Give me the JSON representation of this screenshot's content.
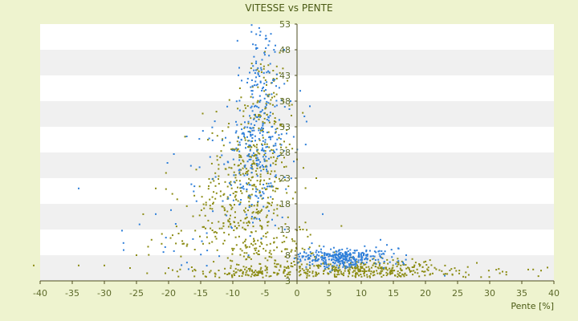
{
  "chart_data": {
    "type": "scatter",
    "title": "VITESSE vs PENTE",
    "xlabel": "Pente [%]",
    "ylabel": "",
    "xlim": [
      -40,
      40
    ],
    "ylim": [
      3,
      53
    ],
    "x_ticks": [
      -40,
      -35,
      -30,
      -25,
      -20,
      -15,
      -10,
      -5,
      0,
      5,
      10,
      15,
      20,
      25,
      30,
      35,
      40
    ],
    "y_ticks": [
      3,
      8,
      13,
      18,
      23,
      28,
      33,
      38,
      43,
      48,
      53
    ],
    "grid": "horizontal alternating bands",
    "colors": {
      "background": "#eef3cf",
      "plot_band_light": "#ffffff",
      "plot_band_dark": "#f0f0f0",
      "axis": "#4d4d1f",
      "text": "#5d6a2a",
      "series_blue": "#2f7fd9",
      "series_olive": "#8c8c14"
    },
    "series": [
      {
        "color": "#2f7fd9",
        "clusters": [
          {
            "cx": -6,
            "cy": 30,
            "sx": 2.2,
            "sy": 7,
            "n": 250
          },
          {
            "cx": -5.5,
            "cy": 45,
            "sx": 1.2,
            "sy": 4,
            "n": 60
          },
          {
            "cx": 7,
            "cy": 7.5,
            "sx": 3.5,
            "sy": 0.9,
            "n": 320
          },
          {
            "cx": -10,
            "cy": 25,
            "sx": 4,
            "sy": 5,
            "n": 60
          },
          {
            "cx": -18,
            "cy": 10,
            "sx": 5,
            "sy": 4,
            "n": 20
          }
        ],
        "points": [
          [
            -34,
            21
          ],
          [
            -27,
            9
          ],
          [
            -22,
            16
          ],
          [
            2,
            37
          ],
          [
            0.5,
            40
          ],
          [
            13,
            11
          ],
          [
            14,
            10
          ],
          [
            17,
            8
          ],
          [
            23,
            4
          ],
          [
            -1,
            38
          ],
          [
            -2,
            48
          ],
          [
            4,
            16
          ]
        ]
      },
      {
        "color": "#8c8c14",
        "clusters": [
          {
            "cx": -7,
            "cy": 23,
            "sx": 3,
            "sy": 7,
            "n": 320
          },
          {
            "cx": -5,
            "cy": 38,
            "sx": 1.8,
            "sy": 6,
            "n": 80
          },
          {
            "cx": -12,
            "cy": 14,
            "sx": 5,
            "sy": 6,
            "n": 160
          },
          {
            "cx": 10,
            "cy": 5.2,
            "sx": 6,
            "sy": 1,
            "n": 300
          },
          {
            "cx": -3,
            "cy": 8,
            "sx": 4,
            "sy": 3,
            "n": 120
          },
          {
            "cx": -8,
            "cy": 4.5,
            "sx": 4,
            "sy": 0.8,
            "n": 80
          },
          {
            "cx": 25,
            "cy": 4.5,
            "sx": 7,
            "sy": 0.7,
            "n": 40
          }
        ],
        "points": [
          [
            -41,
            6
          ],
          [
            -34,
            6
          ],
          [
            -30,
            6
          ],
          [
            -26,
            5.5
          ],
          [
            -22,
            21
          ],
          [
            -20,
            5.5
          ],
          [
            -25,
            8
          ],
          [
            28,
            6.5
          ],
          [
            32,
            4.8
          ],
          [
            36,
            5.2
          ],
          [
            38,
            5
          ],
          [
            39,
            5.6
          ],
          [
            1,
            25
          ],
          [
            3,
            23
          ],
          [
            -2,
            27
          ]
        ]
      }
    ]
  }
}
